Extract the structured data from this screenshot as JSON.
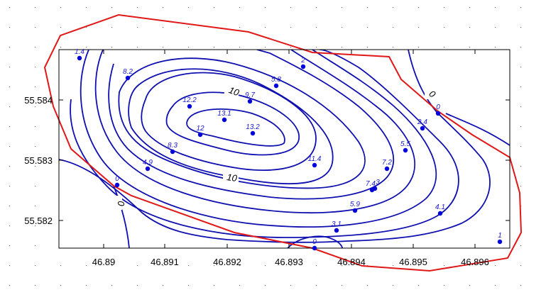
{
  "map": {
    "x_ticks": [
      "46.89",
      "46.891",
      "46.892",
      "46.893",
      "46.894",
      "46.895",
      "46.896"
    ],
    "y_ticks": [
      "55.584",
      "55.583",
      "55.582"
    ],
    "contour_labels": [
      "10",
      "10",
      "0",
      "0"
    ],
    "colors": {
      "contour": "#1010b0",
      "boundary": "#e01818",
      "point": "#0000dd",
      "point_label": "#1a1acc",
      "frame": "#000000"
    },
    "points": [
      {
        "label": "1.4"
      },
      {
        "label": "8.2"
      },
      {
        "label": "2"
      },
      {
        "label": "5.8"
      },
      {
        "label": "9.7"
      },
      {
        "label": "12.2"
      },
      {
        "label": "13.1"
      },
      {
        "label": "12"
      },
      {
        "label": "13.2"
      },
      {
        "label": "8.3"
      },
      {
        "label": "4.9"
      },
      {
        "label": "0"
      },
      {
        "label": "11.4"
      },
      {
        "label": "7.2"
      },
      {
        "label": "7.4"
      },
      {
        "label": "3"
      },
      {
        "label": "5.9"
      },
      {
        "label": "5.5"
      },
      {
        "label": "2.4"
      },
      {
        "label": "0"
      },
      {
        "label": "4.1"
      },
      {
        "label": "3.1"
      },
      {
        "label": "0"
      },
      {
        "label": "1"
      }
    ]
  }
}
